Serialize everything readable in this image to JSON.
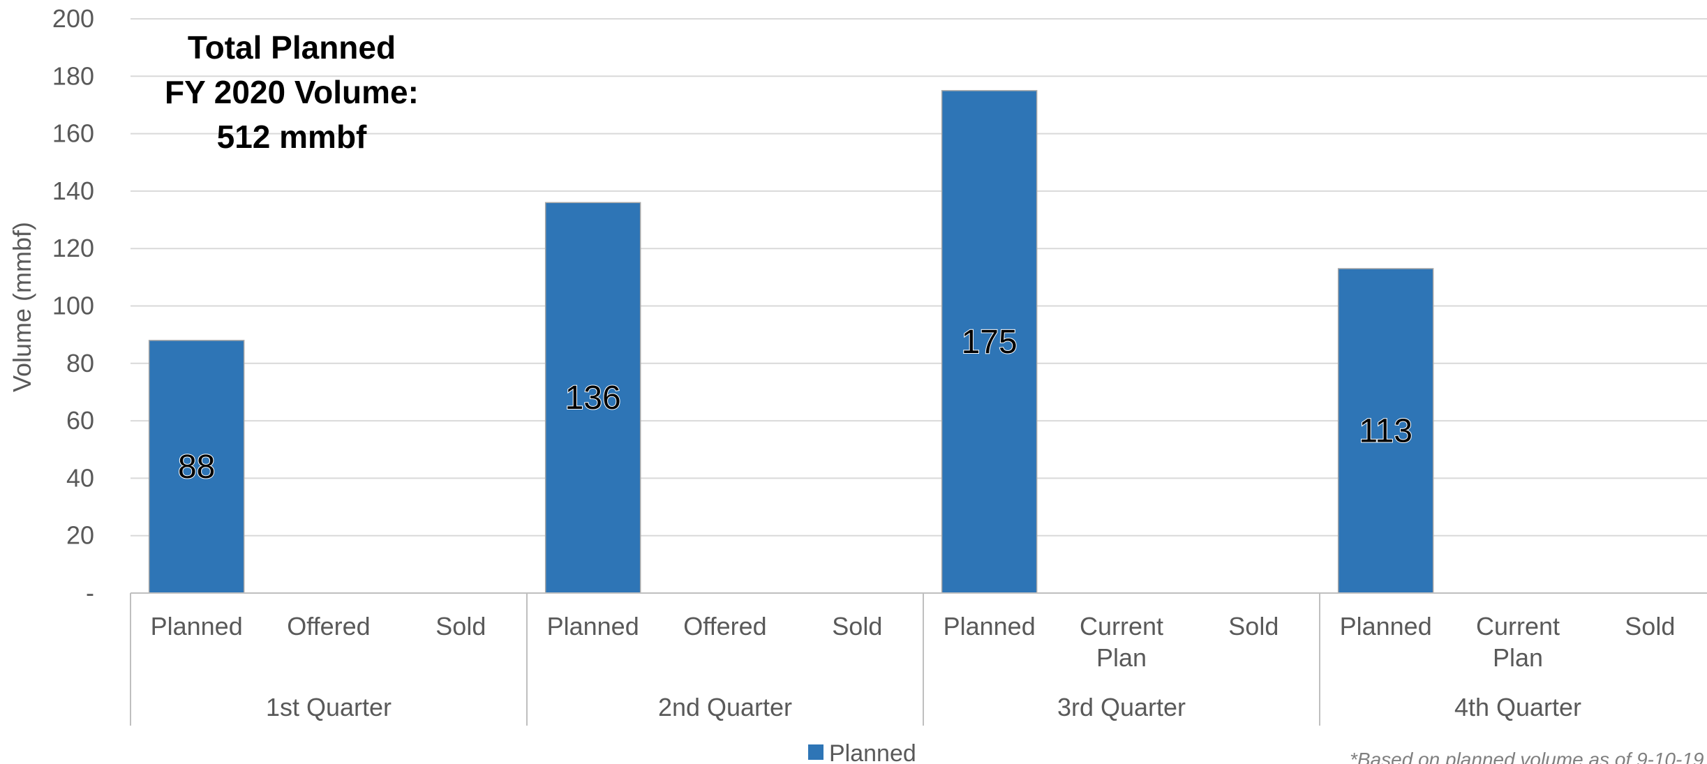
{
  "chart_data": {
    "type": "bar",
    "ylabel": "Volume (mmbf)",
    "ylim": [
      0,
      200
    ],
    "yticks": [
      {
        "value": 0,
        "label": "-"
      },
      {
        "value": 20,
        "label": "20"
      },
      {
        "value": 40,
        "label": "40"
      },
      {
        "value": 60,
        "label": "60"
      },
      {
        "value": 80,
        "label": "80"
      },
      {
        "value": 100,
        "label": "100"
      },
      {
        "value": 120,
        "label": "120"
      },
      {
        "value": 140,
        "label": "140"
      },
      {
        "value": 160,
        "label": "160"
      },
      {
        "value": 180,
        "label": "180"
      },
      {
        "value": 200,
        "label": "200"
      }
    ],
    "grid": true,
    "groups": [
      {
        "label": "1st Quarter",
        "categories": [
          "Planned",
          "Offered",
          "Sold"
        ]
      },
      {
        "label": "2nd Quarter",
        "categories": [
          "Planned",
          "Offered",
          "Sold"
        ]
      },
      {
        "label": "3rd Quarter",
        "categories": [
          "Planned",
          "Current Plan",
          "Sold"
        ]
      },
      {
        "label": "4th Quarter",
        "categories": [
          "Planned",
          "Current Plan",
          "Sold"
        ]
      }
    ],
    "series": [
      {
        "name": "Planned",
        "color": "#2e75b6",
        "values": [
          88,
          null,
          null,
          136,
          null,
          null,
          175,
          null,
          null,
          113,
          null,
          null
        ]
      }
    ],
    "data_labels": true,
    "legend": {
      "position": "bottom",
      "entries": [
        "Planned"
      ]
    },
    "annotation": {
      "lines": [
        "Total Planned",
        "FY 2020 Volume:",
        "512 mmbf"
      ]
    },
    "footnote": "*Based on planned volume as of 9-10-19"
  }
}
